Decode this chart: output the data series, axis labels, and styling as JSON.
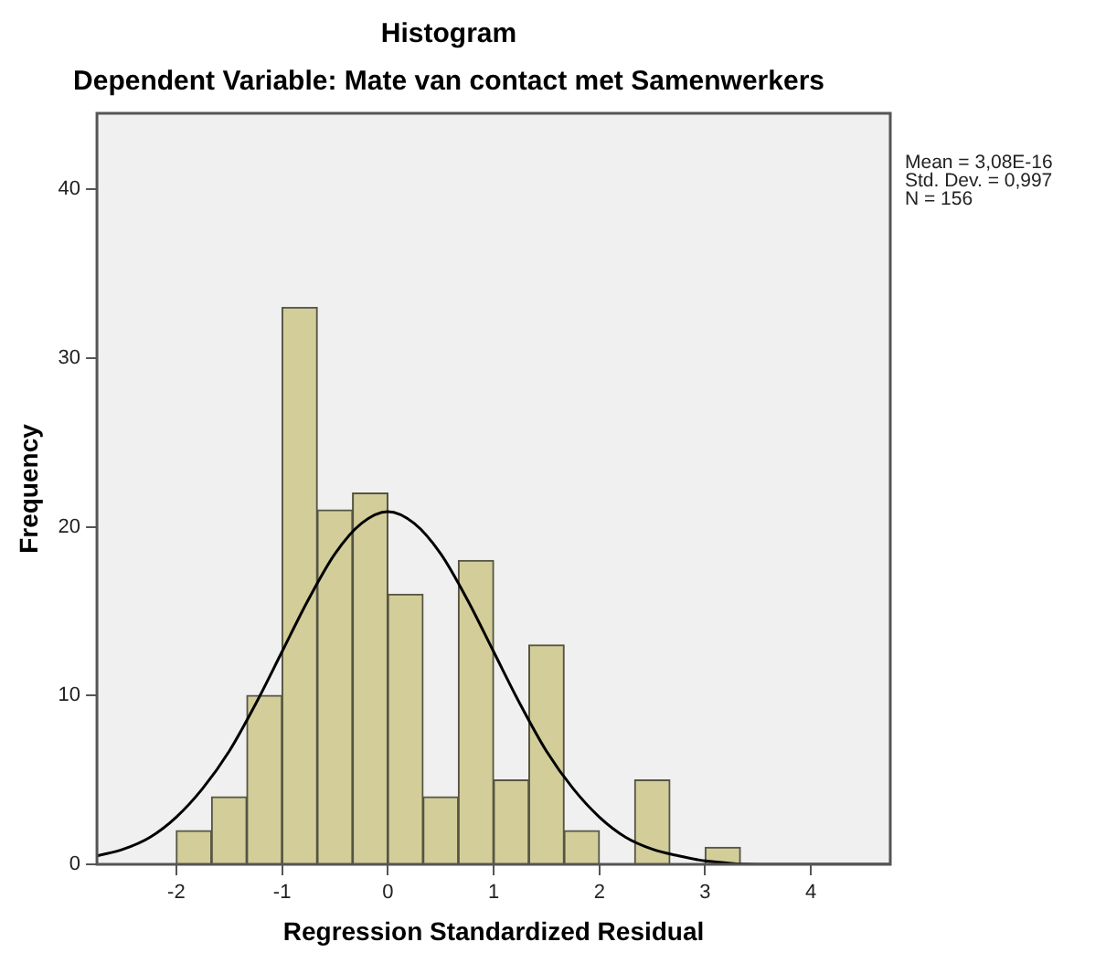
{
  "chart_data": {
    "type": "histogram",
    "title": "Histogram",
    "subtitle": "Dependent Variable: Mate van contact met Samenwerkers",
    "xlabel": "Regression Standardized Residual",
    "ylabel": "Frequency",
    "bins": [
      -2,
      -1.667,
      -1.333,
      -1,
      -0.667,
      -0.333,
      0,
      0.333,
      0.667,
      1,
      1.333,
      1.667,
      2,
      2.333,
      2.667,
      3,
      3.333
    ],
    "values": [
      2,
      4,
      10,
      33,
      21,
      22,
      16,
      4,
      18,
      5,
      13,
      2,
      0,
      5,
      0,
      1
    ],
    "color": "#d3cd99",
    "series": [
      {
        "type": "line",
        "color": "#000000",
        "x": [
          -2.75,
          -2.5,
          -2.25,
          -2,
          -1.75,
          -1.5,
          -1.25,
          -1,
          -0.75,
          -0.5,
          -0.25,
          0,
          0.25,
          0.5,
          0.75,
          1,
          1.25,
          1.5,
          1.75,
          2,
          2.25,
          2.5,
          2.75,
          3,
          3.5,
          4,
          4.75
        ],
        "values": [
          0.5,
          0.9,
          1.6,
          2.8,
          4.5,
          6.7,
          9.5,
          12.6,
          15.7,
          18.4,
          20.2,
          20.9,
          20.2,
          18.4,
          15.7,
          12.6,
          9.5,
          6.7,
          4.5,
          2.8,
          1.6,
          0.9,
          0.5,
          0.2,
          0,
          0,
          0
        ]
      }
    ],
    "xlim": [
      -2.75,
      4.75
    ],
    "xticks": [
      -2,
      -1,
      0,
      1,
      2,
      3,
      4
    ],
    "ylim": [
      0,
      44.5
    ],
    "yticks": [
      0,
      10,
      20,
      30,
      40
    ],
    "annotations": [
      "Mean = 3,08E-16",
      "Std. Dev. = 0,997",
      "N = 156"
    ],
    "marker": "none",
    "legend": false
  }
}
